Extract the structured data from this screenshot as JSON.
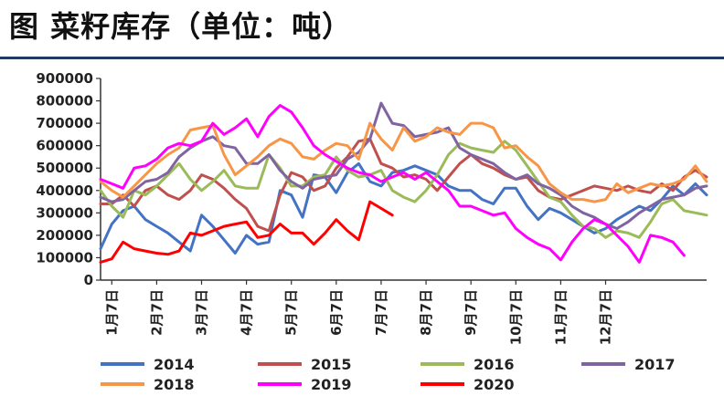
{
  "title": "图  菜籽库存（单位：吨）",
  "chart_data": {
    "type": "line",
    "title": "图  菜籽库存（单位：吨）",
    "ylabel": "",
    "xlabel": "",
    "ylim": [
      0,
      900000
    ],
    "yticks": [
      "0",
      "100000",
      "200000",
      "300000",
      "400000",
      "500000",
      "600000",
      "700000",
      "800000",
      "900000"
    ],
    "xticks": [
      "1月7日",
      "2月7日",
      "3月7日",
      "4月7日",
      "5月7日",
      "6月7日",
      "7月7日",
      "8月7日",
      "9月7日",
      "10月7日",
      "11月7日",
      "12月7日"
    ],
    "x_points_per_month": 4,
    "grid": false,
    "legend": "bottom",
    "series": [
      {
        "name": "2014",
        "color": "#4472c4",
        "values": [
          140000,
          250000,
          310000,
          330000,
          270000,
          240000,
          210000,
          170000,
          130000,
          290000,
          240000,
          180000,
          120000,
          200000,
          160000,
          170000,
          400000,
          380000,
          280000,
          470000,
          460000,
          390000,
          480000,
          520000,
          440000,
          420000,
          480000,
          490000,
          510000,
          490000,
          470000,
          420000,
          400000,
          400000,
          360000,
          340000,
          410000,
          410000,
          330000,
          270000,
          320000,
          300000,
          270000,
          240000,
          210000,
          230000,
          270000,
          300000,
          330000,
          310000,
          360000,
          420000,
          380000,
          430000,
          380000
        ]
      },
      {
        "name": "2015",
        "color": "#c0504d",
        "values": [
          340000,
          340000,
          380000,
          330000,
          400000,
          420000,
          380000,
          360000,
          400000,
          470000,
          450000,
          410000,
          360000,
          320000,
          240000,
          220000,
          380000,
          480000,
          460000,
          400000,
          420000,
          500000,
          550000,
          620000,
          630000,
          520000,
          500000,
          460000,
          470000,
          450000,
          400000,
          460000,
          520000,
          560000,
          520000,
          500000,
          470000,
          450000,
          460000,
          400000,
          370000,
          360000,
          380000,
          400000,
          420000,
          410000,
          400000,
          420000,
          400000,
          390000,
          430000,
          400000,
          460000,
          490000,
          460000
        ]
      },
      {
        "name": "2016",
        "color": "#9bbb59",
        "values": [
          400000,
          330000,
          280000,
          400000,
          380000,
          420000,
          470000,
          520000,
          450000,
          400000,
          440000,
          490000,
          420000,
          410000,
          410000,
          560000,
          500000,
          420000,
          420000,
          460000,
          470000,
          550000,
          490000,
          460000,
          470000,
          490000,
          400000,
          370000,
          350000,
          400000,
          470000,
          560000,
          610000,
          590000,
          580000,
          570000,
          620000,
          580000,
          510000,
          440000,
          370000,
          350000,
          290000,
          240000,
          230000,
          190000,
          220000,
          210000,
          190000,
          260000,
          340000,
          360000,
          310000,
          300000,
          290000
        ]
      },
      {
        "name": "2017",
        "color": "#8064a2",
        "values": [
          370000,
          350000,
          360000,
          400000,
          440000,
          450000,
          480000,
          550000,
          590000,
          620000,
          640000,
          600000,
          590000,
          520000,
          520000,
          560000,
          490000,
          440000,
          410000,
          450000,
          460000,
          470000,
          540000,
          570000,
          630000,
          790000,
          700000,
          690000,
          640000,
          650000,
          660000,
          680000,
          590000,
          560000,
          540000,
          520000,
          480000,
          450000,
          470000,
          430000,
          410000,
          380000,
          330000,
          300000,
          280000,
          250000,
          230000,
          260000,
          300000,
          330000,
          360000,
          370000,
          380000,
          410000,
          420000
        ]
      },
      {
        "name": "2018",
        "color": "#f79646",
        "values": [
          440000,
          400000,
          370000,
          420000,
          470000,
          520000,
          560000,
          590000,
          670000,
          680000,
          690000,
          560000,
          470000,
          510000,
          550000,
          600000,
          630000,
          610000,
          550000,
          540000,
          580000,
          610000,
          600000,
          540000,
          700000,
          630000,
          580000,
          680000,
          620000,
          640000,
          680000,
          660000,
          650000,
          700000,
          700000,
          680000,
          590000,
          600000,
          550000,
          510000,
          430000,
          390000,
          360000,
          360000,
          350000,
          360000,
          430000,
          390000,
          410000,
          430000,
          420000,
          430000,
          450000,
          510000,
          440000
        ]
      },
      {
        "name": "2019",
        "color": "#ff00ff",
        "values": [
          450000,
          430000,
          410000,
          500000,
          510000,
          540000,
          590000,
          610000,
          600000,
          620000,
          700000,
          650000,
          680000,
          720000,
          640000,
          730000,
          780000,
          750000,
          680000,
          600000,
          560000,
          530000,
          500000,
          480000,
          470000,
          440000,
          460000,
          480000,
          450000,
          480000,
          440000,
          400000,
          330000,
          330000,
          310000,
          290000,
          300000,
          230000,
          190000,
          160000,
          140000,
          90000,
          170000,
          230000,
          270000,
          250000,
          200000,
          150000,
          80000,
          200000,
          190000,
          170000,
          110000
        ]
      },
      {
        "name": "2020",
        "color": "#ff0000",
        "values": [
          80000,
          95000,
          170000,
          140000,
          130000,
          120000,
          115000,
          130000,
          210000,
          200000,
          220000,
          240000,
          250000,
          260000,
          190000,
          200000,
          250000,
          210000,
          210000,
          160000,
          210000,
          270000,
          220000,
          180000,
          350000,
          320000,
          290000
        ]
      }
    ]
  }
}
